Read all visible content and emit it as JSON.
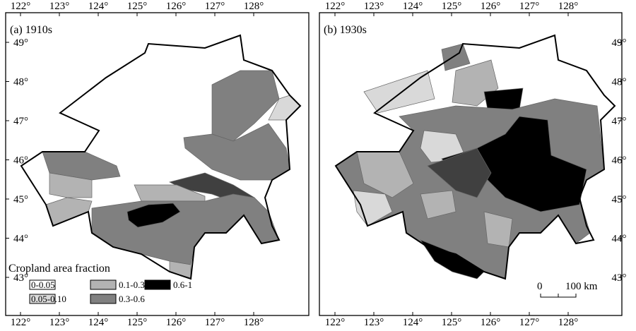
{
  "panels": [
    {
      "label": "(a) 1910s",
      "lon_labels": [
        "122°",
        "123°",
        "124°",
        "125°",
        "126°",
        "127°",
        "128°"
      ],
      "lat_labels": [
        "49°",
        "48°",
        "47°",
        "46°",
        "45°",
        "44°",
        "43°"
      ]
    },
    {
      "label": "(b) 1930s",
      "lon_labels": [
        "122°",
        "123°",
        "124°",
        "125°",
        "126°",
        "127°",
        "128°"
      ],
      "lat_labels": [
        "49°",
        "48°",
        "47°",
        "46°",
        "45°",
        "44°",
        "43°"
      ]
    }
  ],
  "legend": {
    "title": "Cropland area fraction",
    "items": [
      "0-0.05",
      "0.1-0.3",
      "0.6-1",
      "0.05-0.10",
      "0.3-0.6"
    ]
  },
  "scale": {
    "zero": "0",
    "distance": "100 km"
  }
}
